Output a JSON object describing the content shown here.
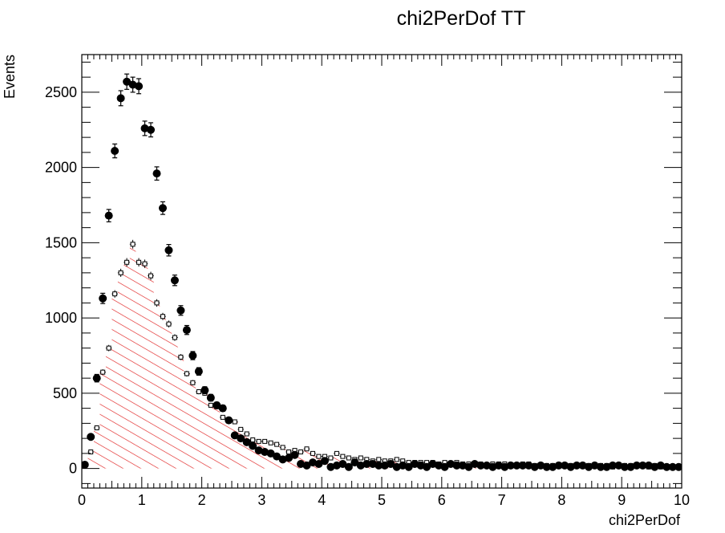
{
  "chart_data": {
    "type": "scatter",
    "title": "chi2PerDof  TT",
    "xlabel": "chi2PerDof",
    "ylabel": "Events",
    "xlim": [
      0,
      10
    ],
    "ylim": [
      -130,
      2750
    ],
    "x_ticks": [
      0,
      1,
      2,
      3,
      4,
      5,
      6,
      7,
      8,
      9,
      10
    ],
    "x_tick_labels": [
      "0",
      "1",
      "2",
      "3",
      "4",
      "5",
      "6",
      "7",
      "8",
      "9",
      "10"
    ],
    "y_ticks": [
      0,
      500,
      1000,
      1500,
      2000,
      2500
    ],
    "y_tick_labels": [
      "0",
      "500",
      "1000",
      "1500",
      "2000",
      "2500"
    ],
    "grid": false,
    "legend": "none",
    "bin_width": 0.1,
    "colors": {
      "hatch": "#e02020",
      "marker": "#000000",
      "open_marker": "#ffffff"
    },
    "series": [
      {
        "style": "filled-circles-with-error-bars",
        "x": [
          0.05,
          0.15,
          0.25,
          0.35,
          0.45,
          0.55,
          0.65,
          0.75,
          0.85,
          0.95,
          1.05,
          1.15,
          1.25,
          1.35,
          1.45,
          1.55,
          1.65,
          1.75,
          1.85,
          1.95,
          2.05,
          2.15,
          2.25,
          2.35,
          2.45,
          2.55,
          2.65,
          2.75,
          2.85,
          2.95,
          3.05,
          3.15,
          3.25,
          3.35,
          3.45,
          3.55,
          3.65,
          3.75,
          3.85,
          3.95,
          4.05,
          4.15,
          4.25,
          4.35,
          4.45,
          4.55,
          4.65,
          4.75,
          4.85,
          4.95,
          5.05,
          5.15,
          5.25,
          5.35,
          5.45,
          5.55,
          5.65,
          5.75,
          5.85,
          5.95,
          6.05,
          6.15,
          6.25,
          6.35,
          6.45,
          6.55,
          6.65,
          6.75,
          6.85,
          6.95,
          7.05,
          7.15,
          7.25,
          7.35,
          7.45,
          7.55,
          7.65,
          7.75,
          7.85,
          7.95,
          8.05,
          8.15,
          8.25,
          8.35,
          8.45,
          8.55,
          8.65,
          8.75,
          8.85,
          8.95,
          9.05,
          9.15,
          9.25,
          9.35,
          9.45,
          9.55,
          9.65,
          9.75,
          9.85,
          9.95
        ],
        "values": [
          25,
          210,
          600,
          1130,
          1680,
          2110,
          2460,
          2570,
          2550,
          2540,
          2260,
          2250,
          1960,
          1730,
          1450,
          1250,
          1050,
          920,
          750,
          645,
          520,
          470,
          420,
          400,
          320,
          220,
          200,
          175,
          150,
          120,
          110,
          100,
          80,
          60,
          70,
          90,
          30,
          20,
          40,
          30,
          50,
          10,
          20,
          30,
          10,
          40,
          20,
          30,
          30,
          20,
          20,
          30,
          10,
          20,
          10,
          30,
          20,
          10,
          30,
          20,
          10,
          30,
          20,
          20,
          10,
          30,
          20,
          20,
          10,
          20,
          10,
          20,
          20,
          20,
          20,
          10,
          20,
          10,
          10,
          20,
          20,
          10,
          20,
          20,
          10,
          20,
          10,
          10,
          20,
          20,
          10,
          10,
          20,
          20,
          20,
          10,
          20,
          10,
          10,
          10
        ],
        "errors": [
          6,
          15,
          25,
          34,
          41,
          46,
          50,
          51,
          50,
          50,
          48,
          47,
          44,
          42,
          38,
          35,
          32,
          30,
          27,
          25,
          23,
          22,
          20,
          20,
          18,
          15,
          14,
          13,
          12,
          11,
          10,
          10,
          9,
          8,
          8,
          9,
          5,
          4,
          6,
          5,
          7,
          3,
          4,
          5,
          3,
          6,
          4,
          5,
          5,
          4,
          4,
          5,
          3,
          4,
          3,
          5,
          4,
          3,
          5,
          4,
          3,
          5,
          4,
          4,
          3,
          5,
          4,
          4,
          3,
          4,
          3,
          4,
          4,
          4,
          4,
          3,
          4,
          3,
          3,
          4,
          4,
          3,
          4,
          4,
          3,
          4,
          3,
          3,
          4,
          4,
          3,
          3,
          4,
          4,
          4,
          3,
          4,
          3,
          3,
          3
        ]
      },
      {
        "style": "hatched-histogram-with-open-squares",
        "x": [
          0.05,
          0.15,
          0.25,
          0.35,
          0.45,
          0.55,
          0.65,
          0.75,
          0.85,
          0.95,
          1.05,
          1.15,
          1.25,
          1.35,
          1.45,
          1.55,
          1.65,
          1.75,
          1.85,
          1.95,
          2.05,
          2.15,
          2.25,
          2.35,
          2.45,
          2.55,
          2.65,
          2.75,
          2.85,
          2.95,
          3.05,
          3.15,
          3.25,
          3.35,
          3.45,
          3.55,
          3.65,
          3.75,
          3.85,
          3.95,
          4.05,
          4.15,
          4.25,
          4.35,
          4.45,
          4.55,
          4.65,
          4.75,
          4.85,
          4.95,
          5.05,
          5.15,
          5.25,
          5.35,
          5.45,
          5.55,
          5.65,
          5.75,
          5.85,
          5.95,
          6.05,
          6.15,
          6.25,
          6.35,
          6.45,
          6.55,
          6.65,
          6.75,
          6.85,
          6.95,
          7.05,
          7.15,
          7.25,
          7.35,
          7.45,
          7.55,
          7.65,
          7.75,
          7.85,
          7.95,
          8.05,
          8.15,
          8.25,
          8.35,
          8.45,
          8.55,
          8.65,
          8.75,
          8.85,
          8.95,
          9.05,
          9.15,
          9.25,
          9.35,
          9.45,
          9.55,
          9.65,
          9.75,
          9.85,
          9.95
        ],
        "values": [
          0,
          110,
          270,
          640,
          800,
          1160,
          1300,
          1370,
          1490,
          1370,
          1360,
          1280,
          1100,
          1010,
          960,
          870,
          740,
          630,
          570,
          510,
          500,
          420,
          410,
          340,
          320,
          310,
          260,
          230,
          190,
          180,
          180,
          170,
          160,
          140,
          110,
          120,
          110,
          130,
          100,
          80,
          80,
          70,
          100,
          80,
          70,
          60,
          70,
          60,
          50,
          60,
          50,
          50,
          60,
          50,
          40,
          40,
          40,
          40,
          40,
          30,
          40,
          30,
          40,
          30,
          30,
          30,
          30,
          20,
          30,
          30,
          30,
          20,
          20,
          30,
          30,
          20,
          20,
          20,
          20,
          20,
          20,
          20,
          20,
          20,
          20,
          20,
          20,
          20,
          10,
          20,
          20,
          20,
          20,
          20,
          10,
          20,
          10,
          10,
          10,
          10
        ],
        "errors": [
          0,
          8,
          12,
          19,
          21,
          25,
          27,
          28,
          29,
          28,
          28,
          27,
          25,
          24,
          23,
          22,
          20,
          19,
          18,
          17,
          17,
          16,
          15,
          14,
          13,
          13,
          12,
          11,
          10,
          10,
          10,
          10,
          9,
          9,
          8,
          8,
          8,
          8,
          8,
          7,
          7,
          6,
          7,
          7,
          6,
          6,
          6,
          6,
          5,
          6,
          5,
          5,
          6,
          5,
          5,
          5,
          5,
          5,
          5,
          4,
          5,
          4,
          5,
          4,
          4,
          4,
          4,
          3,
          4,
          4,
          4,
          3,
          3,
          4,
          4,
          3,
          3,
          3,
          3,
          3,
          3,
          3,
          3,
          3,
          3,
          3,
          3,
          3,
          2,
          3,
          3,
          3,
          3,
          3,
          2,
          3,
          2,
          2,
          2,
          2
        ]
      }
    ]
  }
}
